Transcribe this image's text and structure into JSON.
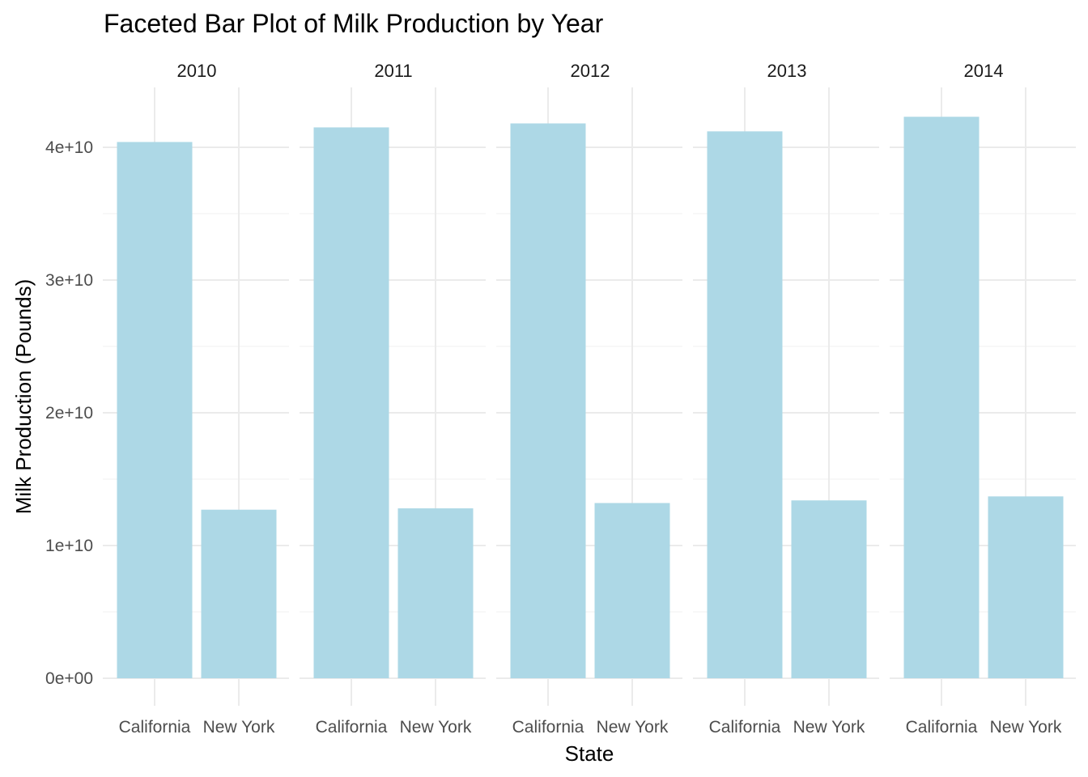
{
  "chart_data": {
    "type": "bar",
    "title": "Faceted Bar Plot of Milk Production by Year",
    "xlabel": "State",
    "ylabel": "Milk Production (Pounds)",
    "categories": [
      "California",
      "New York"
    ],
    "ylim": [
      0,
      44500000000
    ],
    "yticks": [
      0,
      10000000000,
      20000000000,
      30000000000,
      40000000000
    ],
    "ytick_labels": [
      "0e+00",
      "1e+10",
      "2e+10",
      "3e+10",
      "4e+10"
    ],
    "grid": true,
    "legend": "none",
    "bar_color": "#add8e6",
    "facets": [
      {
        "label": "2010",
        "values": [
          40400000000,
          12700000000
        ]
      },
      {
        "label": "2011",
        "values": [
          41500000000,
          12800000000
        ]
      },
      {
        "label": "2012",
        "values": [
          41800000000,
          13200000000
        ]
      },
      {
        "label": "2013",
        "values": [
          41200000000,
          13400000000
        ]
      },
      {
        "label": "2014",
        "values": [
          42300000000,
          13700000000
        ]
      }
    ]
  }
}
